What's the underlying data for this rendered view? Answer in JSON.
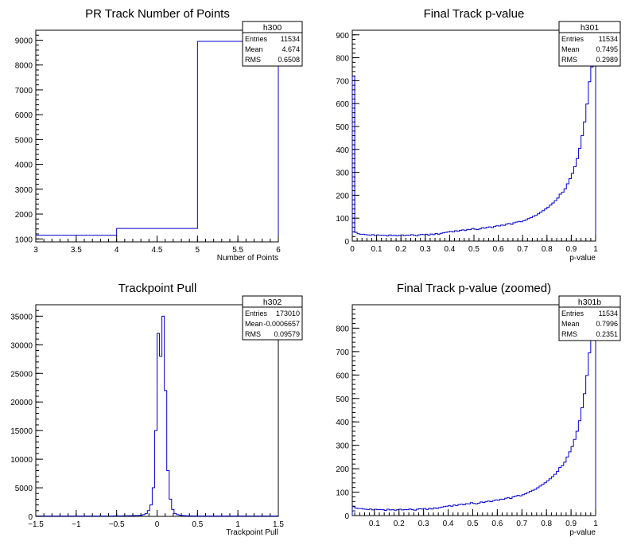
{
  "chart_data": [
    {
      "type": "histogram",
      "title": "PR Track Number of Points",
      "xlabel": "Number of Points",
      "ylabel": "",
      "xlim": [
        3,
        6
      ],
      "ylim": [
        880,
        9400
      ],
      "xticks": [
        3,
        3.5,
        4,
        4.5,
        5,
        5.5,
        6
      ],
      "xtick_labels": [
        "3",
        "3.5",
        "4",
        "4.5",
        "5",
        "5.5",
        "6"
      ],
      "yticks": [
        1000,
        2000,
        3000,
        4000,
        5000,
        6000,
        7000,
        8000,
        9000
      ],
      "ytick_labels": [
        "1000",
        "2000",
        "3000",
        "4000",
        "5000",
        "6000",
        "7000",
        "8000",
        "9000"
      ],
      "bin_edges": [
        3,
        4,
        5,
        6
      ],
      "values": [
        1150,
        1420,
        8950
      ],
      "line_color": "#0000cc",
      "stats": {
        "name": "h300",
        "rows": [
          [
            "Entries",
            "11534"
          ],
          [
            "Mean",
            "4.674"
          ],
          [
            "RMS",
            "0.6508"
          ]
        ]
      }
    },
    {
      "type": "histogram",
      "title": "Final Track p-value",
      "xlabel": "p-value",
      "ylabel": "",
      "xlim": [
        0,
        1
      ],
      "ylim": [
        0,
        920
      ],
      "xticks": [
        0,
        0.1,
        0.2,
        0.3,
        0.4,
        0.5,
        0.6,
        0.7,
        0.8,
        0.9,
        1
      ],
      "xtick_labels": [
        "0",
        "0.1",
        "0.2",
        "0.3",
        "0.4",
        "0.5",
        "0.6",
        "0.7",
        "0.8",
        "0.9",
        "1"
      ],
      "yticks": [
        0,
        100,
        200,
        300,
        400,
        500,
        600,
        700,
        800,
        900
      ],
      "ytick_labels": [
        "0",
        "100",
        "200",
        "300",
        "400",
        "500",
        "600",
        "700",
        "800",
        "900"
      ],
      "bin_edges_range": [
        0,
        1
      ],
      "nbins": 100,
      "values": [
        720,
        38,
        32,
        30,
        30,
        28,
        27,
        26,
        28,
        24,
        27,
        25,
        26,
        25,
        22,
        27,
        24,
        25,
        23,
        25,
        27,
        24,
        26,
        25,
        28,
        25,
        23,
        27,
        29,
        28,
        30,
        26,
        31,
        28,
        33,
        30,
        34,
        36,
        38,
        40,
        42,
        40,
        45,
        43,
        47,
        49,
        46,
        51,
        50,
        55,
        52,
        50,
        53,
        58,
        56,
        60,
        62,
        59,
        64,
        67,
        66,
        70,
        69,
        74,
        77,
        73,
        80,
        83,
        86,
        84,
        89,
        93,
        98,
        103,
        108,
        112,
        119,
        126,
        133,
        140,
        148,
        157,
        166,
        176,
        188,
        205,
        213,
        228,
        250,
        272,
        295,
        325,
        360,
        405,
        460,
        520,
        598,
        695,
        760,
        900
      ],
      "line_color": "#0000cc",
      "stats": {
        "name": "h301",
        "rows": [
          [
            "Entries",
            "11534"
          ],
          [
            "Mean",
            "0.7495"
          ],
          [
            "RMS",
            "0.2989"
          ]
        ]
      }
    },
    {
      "type": "histogram",
      "title": "Trackpoint Pull",
      "xlabel": "Trackpoint Pull",
      "ylabel": "",
      "xlim": [
        -1.5,
        1.5
      ],
      "ylim": [
        0,
        37000
      ],
      "xticks": [
        -1.5,
        -1,
        -0.5,
        0,
        0.5,
        1,
        1.5
      ],
      "xtick_labels": [
        "−1.5",
        "−1",
        "−0.5",
        "0",
        "0.5",
        "1",
        "1.5"
      ],
      "yticks": [
        0,
        5000,
        10000,
        15000,
        20000,
        25000,
        30000,
        35000
      ],
      "ytick_labels": [
        "0",
        "5000",
        "10000",
        "15000",
        "20000",
        "25000",
        "30000",
        "35000"
      ],
      "bin_edges_range": [
        -1.5,
        1.5
      ],
      "nbins": 100,
      "values": [
        70,
        70,
        70,
        70,
        70,
        70,
        70,
        70,
        70,
        70,
        70,
        70,
        70,
        70,
        70,
        70,
        70,
        70,
        70,
        70,
        70,
        70,
        70,
        70,
        70,
        70,
        70,
        70,
        70,
        70,
        70,
        70,
        80,
        80,
        90,
        90,
        100,
        100,
        120,
        130,
        140,
        160,
        180,
        200,
        300,
        500,
        1000,
        2000,
        5000,
        15000,
        32000,
        28000,
        35000,
        22000,
        8000,
        3000,
        1200,
        500,
        300,
        200,
        150,
        120,
        100,
        90,
        80,
        80,
        70,
        70,
        70,
        70,
        70,
        70,
        70,
        70,
        70,
        70,
        70,
        70,
        70,
        70,
        70,
        70,
        70,
        70,
        70,
        70,
        70,
        70,
        70,
        70,
        70,
        70,
        70,
        70,
        70,
        70,
        70,
        70,
        70,
        70
      ],
      "line_color": "#0000cc",
      "stats": {
        "name": "h302",
        "rows": [
          [
            "Entries",
            "173010"
          ],
          [
            "Mean",
            "-0.0006657"
          ],
          [
            "RMS",
            "0.09579"
          ]
        ]
      }
    },
    {
      "type": "histogram",
      "title": "Final Track p-value (zoomed)",
      "xlabel": "p-value",
      "ylabel": "",
      "xlim": [
        0.01,
        1
      ],
      "ylim": [
        0,
        900
      ],
      "xticks": [
        0.1,
        0.2,
        0.3,
        0.4,
        0.5,
        0.6,
        0.7,
        0.8,
        0.9,
        1
      ],
      "xtick_labels": [
        "0.1",
        "0.2",
        "0.3",
        "0.4",
        "0.5",
        "0.6",
        "0.7",
        "0.8",
        "0.9",
        "1"
      ],
      "yticks": [
        0,
        100,
        200,
        300,
        400,
        500,
        600,
        700,
        800
      ],
      "ytick_labels": [
        "0",
        "100",
        "200",
        "300",
        "400",
        "500",
        "600",
        "700",
        "800"
      ],
      "bin_edges_range": [
        0.01,
        1
      ],
      "nbins": 99,
      "values": [
        38,
        32,
        30,
        30,
        28,
        27,
        26,
        28,
        24,
        27,
        25,
        26,
        25,
        22,
        27,
        24,
        25,
        23,
        25,
        27,
        24,
        26,
        25,
        28,
        25,
        23,
        27,
        29,
        28,
        30,
        26,
        31,
        28,
        33,
        30,
        34,
        36,
        38,
        40,
        42,
        40,
        45,
        43,
        47,
        49,
        46,
        51,
        50,
        55,
        52,
        50,
        53,
        58,
        56,
        60,
        62,
        59,
        64,
        67,
        66,
        70,
        69,
        74,
        77,
        73,
        80,
        83,
        86,
        84,
        89,
        93,
        98,
        103,
        108,
        112,
        119,
        126,
        133,
        140,
        148,
        157,
        166,
        176,
        188,
        205,
        213,
        228,
        250,
        272,
        295,
        325,
        360,
        405,
        460,
        520,
        598,
        695,
        760,
        900
      ],
      "line_color": "#0000cc",
      "stats": {
        "name": "h301b",
        "rows": [
          [
            "Entries",
            "11534"
          ],
          [
            "Mean",
            "0.7996"
          ],
          [
            "RMS",
            "0.2351"
          ]
        ]
      }
    }
  ]
}
